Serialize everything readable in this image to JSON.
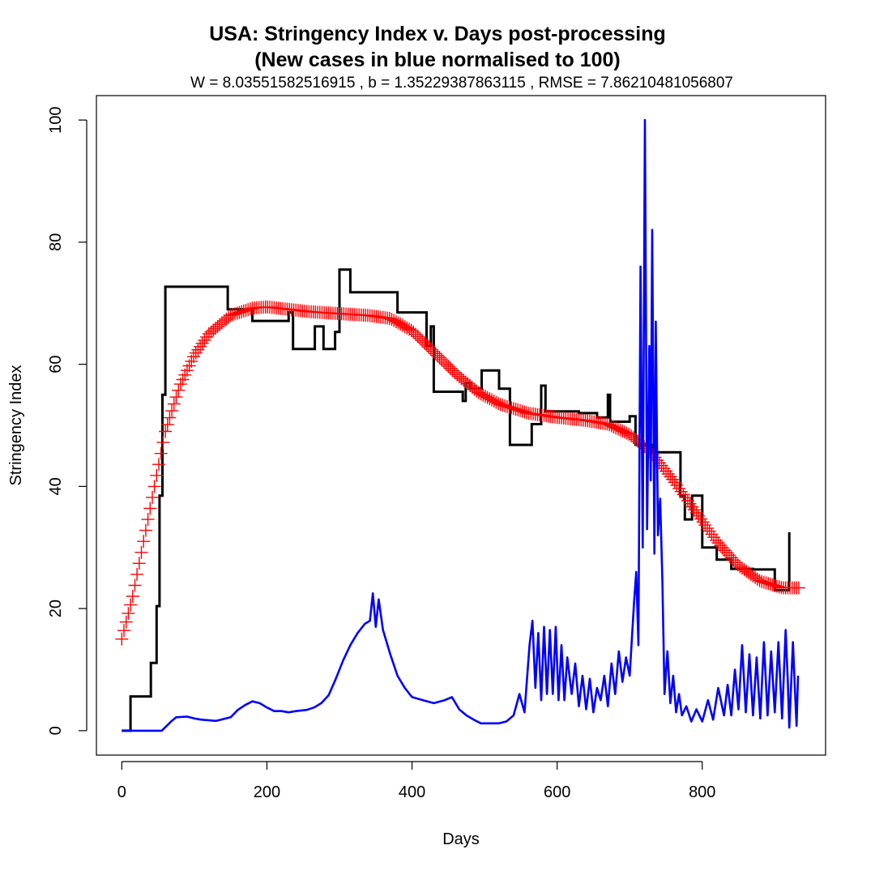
{
  "chart_data": {
    "type": "line",
    "title_lines": [
      "USA: Stringency Index v. Days post-processing",
      "(New cases in blue normalised to 100)"
    ],
    "subtitle": "W = 8.03551582516915 , b = 1.35229387863115 , RMSE = 7.86210481056807",
    "xlabel": "Days",
    "ylabel": "Stringency Index",
    "xlim": [
      -35,
      970
    ],
    "ylim": [
      -4,
      104
    ],
    "x_ticks": [
      0,
      200,
      400,
      600,
      800
    ],
    "y_ticks": [
      0,
      20,
      40,
      60,
      80,
      100
    ],
    "grid": false,
    "legend": "none",
    "colors": {
      "stringency": "#000000",
      "fitted": "#ff0000",
      "new_cases": "#0000ff"
    },
    "series": [
      {
        "style": "step",
        "color": "#000000",
        "points": [
          [
            0,
            0
          ],
          [
            12,
            0
          ],
          [
            12,
            5.6
          ],
          [
            40,
            5.6
          ],
          [
            40,
            11.1
          ],
          [
            48,
            11.1
          ],
          [
            48,
            20.4
          ],
          [
            52,
            20.4
          ],
          [
            52,
            38.5
          ],
          [
            56,
            38.5
          ],
          [
            56,
            55
          ],
          [
            60,
            55
          ],
          [
            60,
            72.7
          ],
          [
            146,
            72.7
          ],
          [
            146,
            69
          ],
          [
            180,
            69
          ],
          [
            180,
            67.1
          ],
          [
            230,
            67.1
          ],
          [
            230,
            68.5
          ],
          [
            236,
            68.5
          ],
          [
            236,
            62.5
          ],
          [
            266,
            62.5
          ],
          [
            266,
            66.2
          ],
          [
            278,
            66.2
          ],
          [
            278,
            62.5
          ],
          [
            294,
            62.5
          ],
          [
            294,
            65.3
          ],
          [
            300,
            65.3
          ],
          [
            300,
            75.5
          ],
          [
            315,
            75.5
          ],
          [
            315,
            71.8
          ],
          [
            380,
            71.8
          ],
          [
            380,
            68.5
          ],
          [
            420,
            68.5
          ],
          [
            420,
            63
          ],
          [
            426,
            63
          ],
          [
            426,
            66.2
          ],
          [
            430,
            66.2
          ],
          [
            430,
            55.5
          ],
          [
            470,
            55.5
          ],
          [
            470,
            54
          ],
          [
            474,
            54
          ],
          [
            474,
            57
          ],
          [
            480,
            57
          ],
          [
            480,
            56
          ],
          [
            496,
            56
          ],
          [
            496,
            59
          ],
          [
            520,
            59
          ],
          [
            520,
            56
          ],
          [
            535,
            56
          ],
          [
            535,
            46.8
          ],
          [
            565,
            46.8
          ],
          [
            565,
            50.2
          ],
          [
            578,
            50.2
          ],
          [
            578,
            56.5
          ],
          [
            584,
            56.5
          ],
          [
            584,
            52.3
          ],
          [
            630,
            52.3
          ],
          [
            630,
            52
          ],
          [
            655,
            52
          ],
          [
            655,
            51.3
          ],
          [
            670,
            51.3
          ],
          [
            670,
            55
          ],
          [
            673,
            55
          ],
          [
            673,
            50.6
          ],
          [
            700,
            50.6
          ],
          [
            700,
            51.5
          ],
          [
            708,
            51.5
          ],
          [
            708,
            46.8
          ],
          [
            730,
            46.8
          ],
          [
            730,
            45.6
          ],
          [
            770,
            45.6
          ],
          [
            770,
            38.5
          ],
          [
            776,
            38.5
          ],
          [
            776,
            34.6
          ],
          [
            786,
            34.6
          ],
          [
            786,
            38.5
          ],
          [
            800,
            38.5
          ],
          [
            800,
            30
          ],
          [
            820,
            30
          ],
          [
            820,
            28
          ],
          [
            840,
            28
          ],
          [
            840,
            26.5
          ],
          [
            870,
            26.5
          ],
          [
            870,
            26.4
          ],
          [
            900,
            26.4
          ],
          [
            900,
            23
          ],
          [
            920,
            23
          ],
          [
            920,
            32.5
          ]
        ]
      },
      {
        "style": "fit-plus",
        "color": "#ff0000",
        "points": [
          [
            0,
            15
          ],
          [
            15,
            22
          ],
          [
            30,
            31
          ],
          [
            45,
            40
          ],
          [
            60,
            49
          ],
          [
            80,
            56.5
          ],
          [
            100,
            61.5
          ],
          [
            120,
            65
          ],
          [
            150,
            68
          ],
          [
            180,
            69.2
          ],
          [
            200,
            69.4
          ],
          [
            230,
            69
          ],
          [
            260,
            68.6
          ],
          [
            300,
            68.3
          ],
          [
            340,
            68
          ],
          [
            370,
            67.5
          ],
          [
            400,
            65.5
          ],
          [
            430,
            62
          ],
          [
            460,
            58.5
          ],
          [
            490,
            55.5
          ],
          [
            520,
            53.5
          ],
          [
            560,
            52
          ],
          [
            600,
            51.3
          ],
          [
            640,
            50.8
          ],
          [
            670,
            50.2
          ],
          [
            700,
            48.5
          ],
          [
            730,
            45.5
          ],
          [
            760,
            41
          ],
          [
            790,
            36
          ],
          [
            820,
            31
          ],
          [
            850,
            27
          ],
          [
            880,
            24.5
          ],
          [
            910,
            23.4
          ],
          [
            935,
            23.4
          ]
        ]
      },
      {
        "style": "line",
        "color": "#0000ff",
        "points": [
          [
            0,
            0
          ],
          [
            55,
            0
          ],
          [
            62,
            0.8
          ],
          [
            68,
            1.5
          ],
          [
            75,
            2.2
          ],
          [
            90,
            2.3
          ],
          [
            100,
            2
          ],
          [
            110,
            1.8
          ],
          [
            130,
            1.6
          ],
          [
            150,
            2.2
          ],
          [
            160,
            3.4
          ],
          [
            170,
            4.2
          ],
          [
            180,
            4.8
          ],
          [
            190,
            4.5
          ],
          [
            200,
            3.8
          ],
          [
            210,
            3.2
          ],
          [
            220,
            3.2
          ],
          [
            230,
            3
          ],
          [
            240,
            3.2
          ],
          [
            255,
            3.4
          ],
          [
            265,
            3.8
          ],
          [
            275,
            4.5
          ],
          [
            285,
            5.8
          ],
          [
            295,
            8.5
          ],
          [
            305,
            11.5
          ],
          [
            315,
            14
          ],
          [
            325,
            16
          ],
          [
            335,
            17.5
          ],
          [
            342,
            18
          ],
          [
            346,
            22.5
          ],
          [
            350,
            17
          ],
          [
            354,
            21.5
          ],
          [
            360,
            16.5
          ],
          [
            370,
            12.5
          ],
          [
            380,
            9
          ],
          [
            390,
            7
          ],
          [
            400,
            5.5
          ],
          [
            415,
            5
          ],
          [
            430,
            4.5
          ],
          [
            445,
            5
          ],
          [
            455,
            5.5
          ],
          [
            465,
            3.5
          ],
          [
            475,
            2.5
          ],
          [
            485,
            1.8
          ],
          [
            495,
            1.2
          ],
          [
            510,
            1.2
          ],
          [
            520,
            1.2
          ],
          [
            530,
            1.5
          ],
          [
            540,
            2.5
          ],
          [
            548,
            6
          ],
          [
            555,
            3
          ],
          [
            562,
            14
          ],
          [
            566,
            18
          ],
          [
            570,
            7
          ],
          [
            574,
            16
          ],
          [
            578,
            5
          ],
          [
            582,
            17
          ],
          [
            586,
            6
          ],
          [
            590,
            16.5
          ],
          [
            594,
            6
          ],
          [
            598,
            17
          ],
          [
            602,
            5
          ],
          [
            606,
            14
          ],
          [
            610,
            5
          ],
          [
            614,
            12
          ],
          [
            620,
            6
          ],
          [
            625,
            11
          ],
          [
            630,
            4
          ],
          [
            635,
            9
          ],
          [
            640,
            3.5
          ],
          [
            645,
            8.5
          ],
          [
            650,
            3
          ],
          [
            655,
            7
          ],
          [
            660,
            5
          ],
          [
            665,
            9
          ],
          [
            670,
            4
          ],
          [
            675,
            11
          ],
          [
            680,
            6
          ],
          [
            685,
            13
          ],
          [
            690,
            8
          ],
          [
            695,
            12
          ],
          [
            700,
            9
          ],
          [
            703,
            15
          ],
          [
            706,
            21
          ],
          [
            709,
            26
          ],
          [
            712,
            14
          ],
          [
            715,
            76
          ],
          [
            718,
            30
          ],
          [
            721,
            100
          ],
          [
            724,
            33
          ],
          [
            727,
            63
          ],
          [
            729,
            41
          ],
          [
            731,
            82
          ],
          [
            734,
            29
          ],
          [
            736,
            67
          ],
          [
            739,
            32
          ],
          [
            742,
            38
          ],
          [
            745,
            25
          ],
          [
            748,
            6
          ],
          [
            752,
            13
          ],
          [
            756,
            4.5
          ],
          [
            760,
            9
          ],
          [
            764,
            3
          ],
          [
            768,
            6
          ],
          [
            772,
            2.5
          ],
          [
            778,
            4
          ],
          [
            785,
            1.5
          ],
          [
            792,
            3.5
          ],
          [
            800,
            1.5
          ],
          [
            808,
            5
          ],
          [
            815,
            1.8
          ],
          [
            822,
            7
          ],
          [
            830,
            2.5
          ],
          [
            835,
            7.5
          ],
          [
            840,
            2.5
          ],
          [
            845,
            10
          ],
          [
            850,
            3.5
          ],
          [
            855,
            14
          ],
          [
            860,
            3
          ],
          [
            865,
            12.5
          ],
          [
            870,
            2.5
          ],
          [
            875,
            12
          ],
          [
            880,
            2
          ],
          [
            885,
            14.5
          ],
          [
            890,
            2.5
          ],
          [
            895,
            13
          ],
          [
            900,
            3
          ],
          [
            905,
            14.5
          ],
          [
            910,
            2
          ],
          [
            915,
            16.5
          ],
          [
            918,
            8
          ],
          [
            920,
            0.5
          ],
          [
            925,
            14.5
          ],
          [
            928,
            6
          ],
          [
            930,
            0.8
          ],
          [
            932,
            9
          ]
        ]
      }
    ]
  }
}
